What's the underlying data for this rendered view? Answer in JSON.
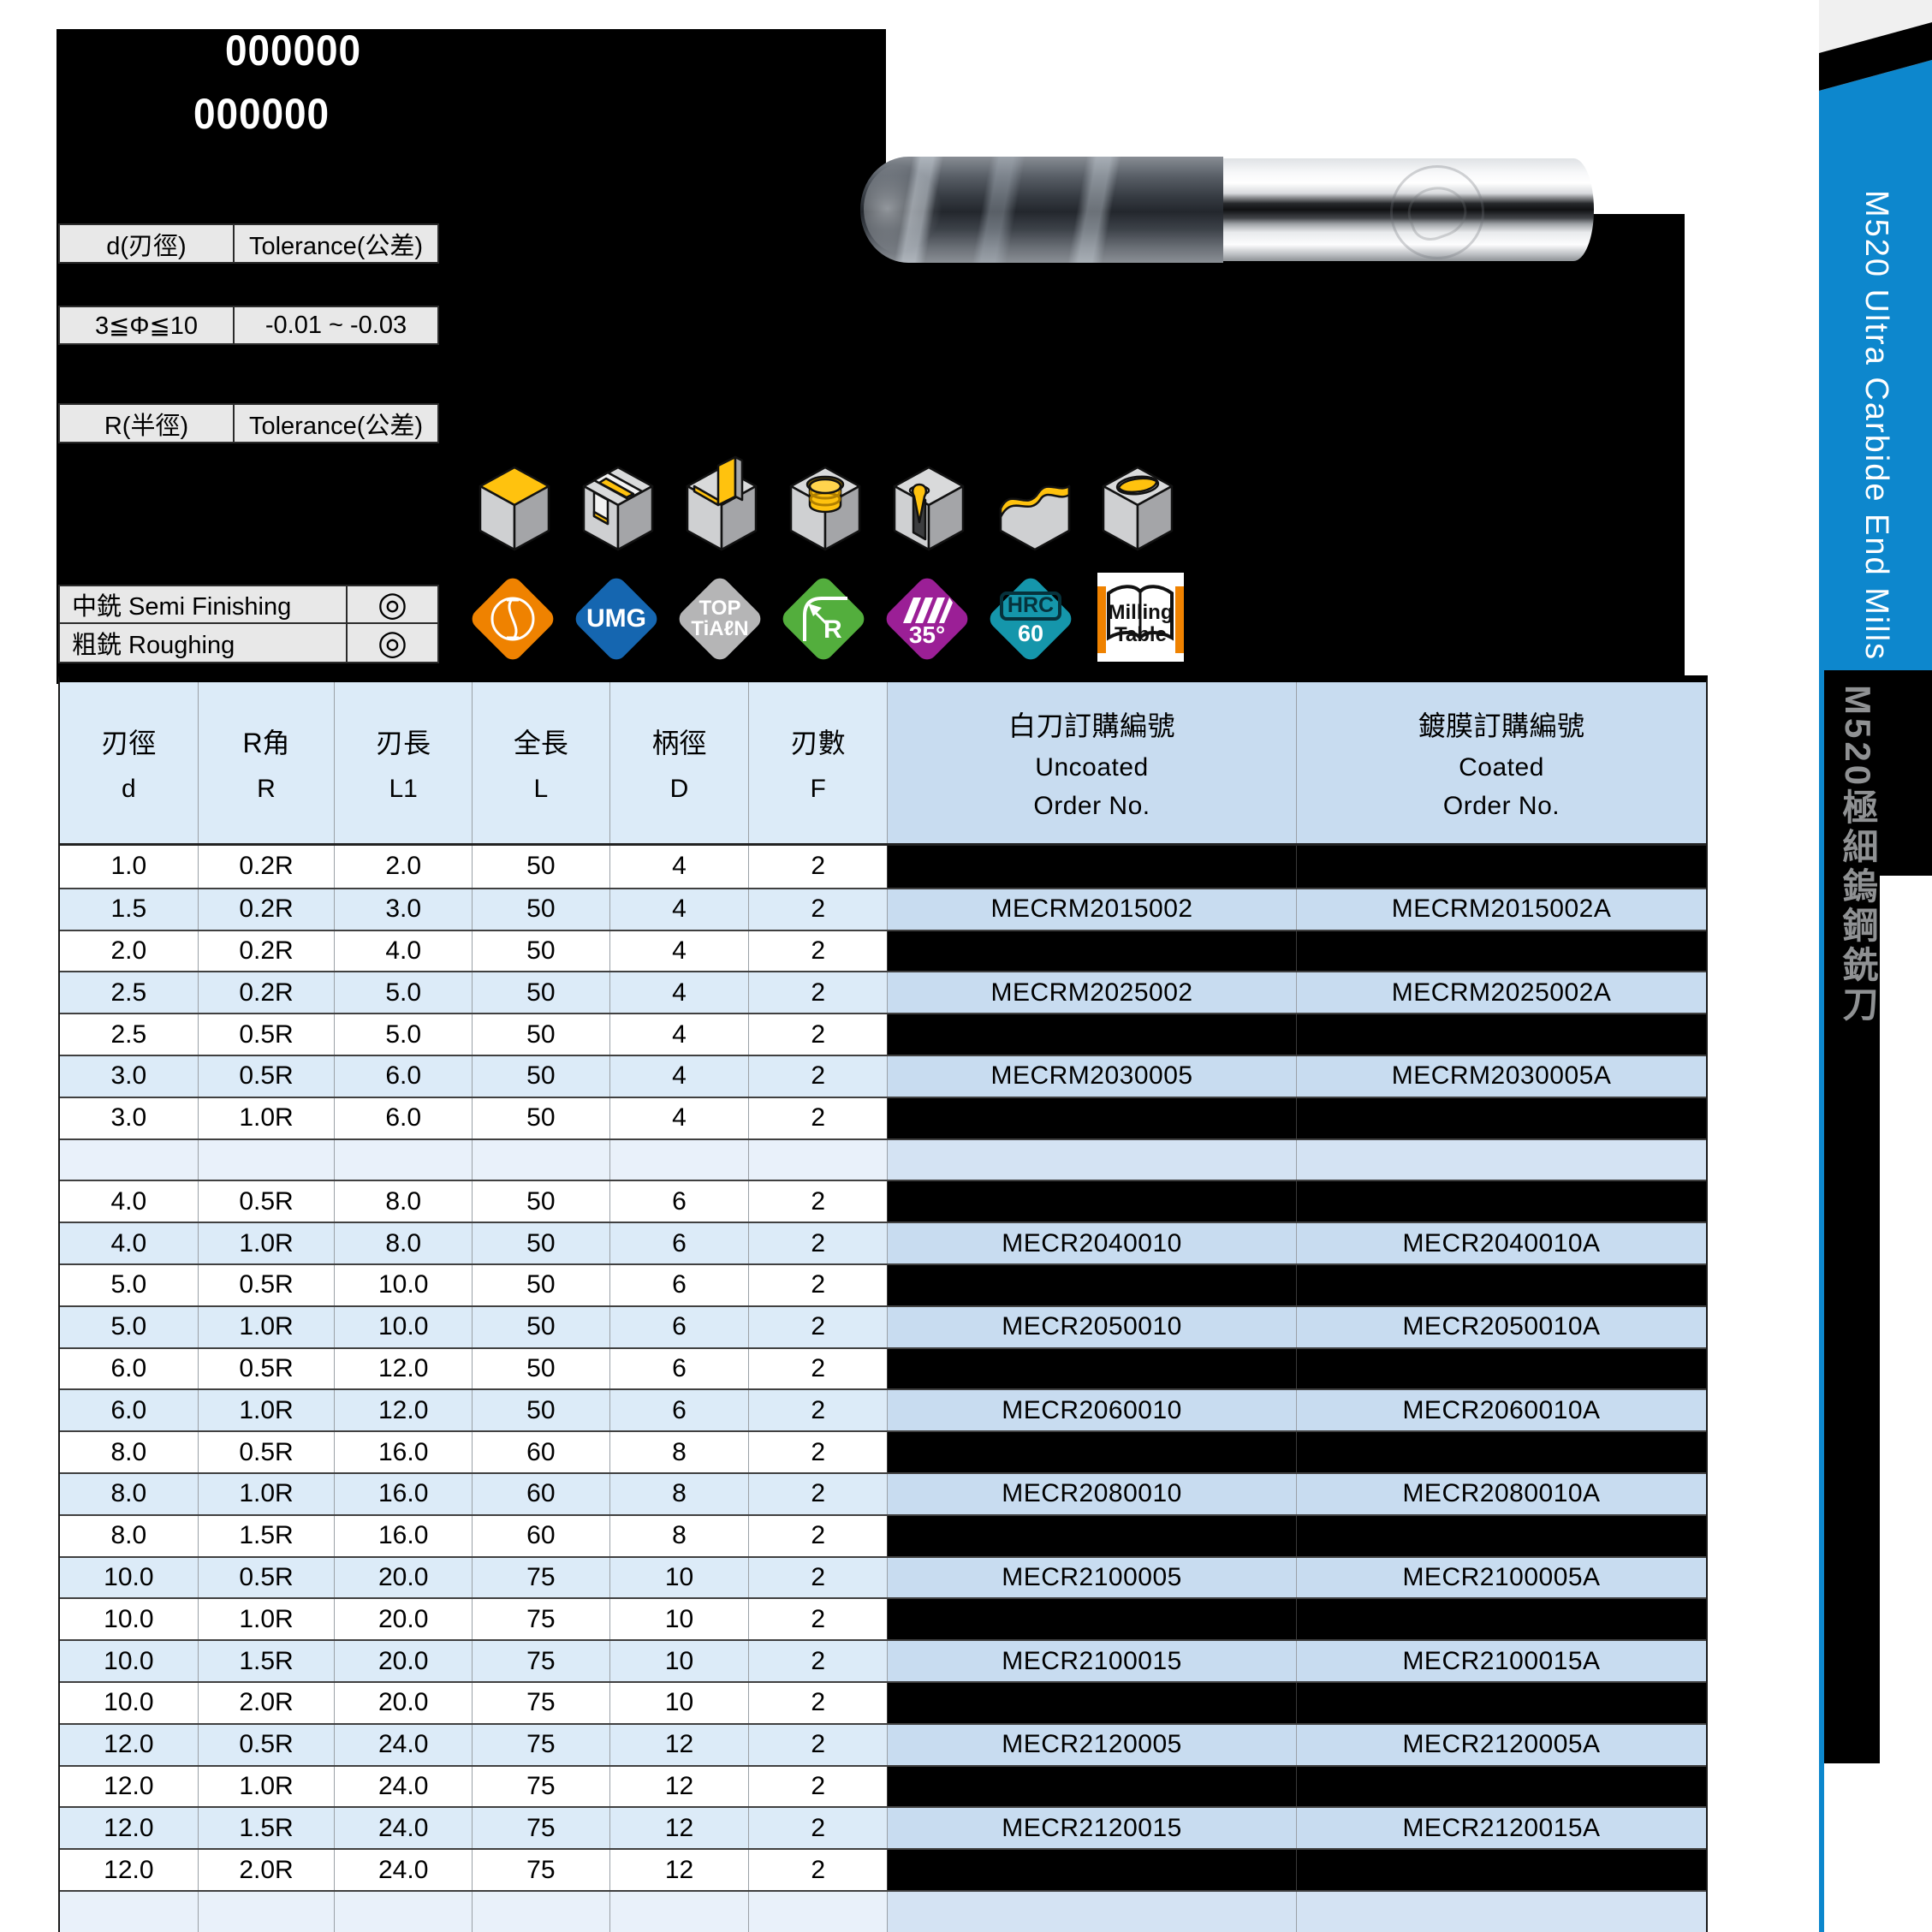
{
  "top_panel": {
    "edp_line1": "000000",
    "edp_line2": "000000",
    "d_table": {
      "header": [
        "d(刃徑)",
        "Tolerance(公差)"
      ],
      "row": [
        "3≦Φ≦10",
        "-0.01 ~ -0.03"
      ]
    },
    "r_table": {
      "header": [
        "R(半徑)",
        "Tolerance(公差)"
      ]
    },
    "app_table": {
      "rows": [
        {
          "label": "中銑 Semi Finishing",
          "rating": "◎"
        },
        {
          "label": "粗銑 Roughing",
          "rating": "◎"
        }
      ]
    }
  },
  "machining_icons": [
    "face-milling",
    "slot-milling",
    "side-milling",
    "helical-milling",
    "drilling",
    "contour-milling",
    "pocket-milling"
  ],
  "badges": [
    {
      "name": "endmill-tip-symbol",
      "color": "#ef8200",
      "line1": "",
      "line2": ""
    },
    {
      "name": "umg-carbide",
      "color": "#1566b0",
      "line1": "UMG",
      "line2": ""
    },
    {
      "name": "top-tialn-coating",
      "color": "#b5b5b6",
      "line1": "TOP",
      "line2": "TiAℓN"
    },
    {
      "name": "corner-radius",
      "color": "#53ae3d",
      "line1": "R",
      "line2": ""
    },
    {
      "name": "helix-angle",
      "color": "#9b1f96",
      "line1": "35°",
      "line2": ""
    },
    {
      "name": "hardness",
      "color": "#1596ab",
      "line1": "HRC",
      "line2": "60"
    },
    {
      "name": "milling-table",
      "color": "#ffffff",
      "line1": "Milling",
      "line2": "Table"
    }
  ],
  "sidebar": {
    "title_en": "M520 Ultra Carbide End Mills",
    "title_zh": "M520極細鎢鋼銑刀",
    "accent_color": "#0d87cd"
  },
  "table": {
    "headers": [
      {
        "zh": "刃徑",
        "latin": "d"
      },
      {
        "zh": "R角",
        "latin": "R"
      },
      {
        "zh": "刃長",
        "latin": "L1"
      },
      {
        "zh": "全長",
        "latin": "L"
      },
      {
        "zh": "柄徑",
        "latin": "D"
      },
      {
        "zh": "刃數",
        "latin": "F"
      }
    ],
    "order_headers": [
      {
        "zh": "白刀訂購編號",
        "en": "Uncoated",
        "no": "Order No."
      },
      {
        "zh": "鍍膜訂購編號",
        "en": "Coated",
        "no": "Order No."
      }
    ],
    "rows": [
      {
        "d": "1.0",
        "r": "0.2R",
        "l1": "2.0",
        "l": "50",
        "dia": "4",
        "f": "2",
        "unc": "",
        "coa": ""
      },
      {
        "d": "1.5",
        "r": "0.2R",
        "l1": "3.0",
        "l": "50",
        "dia": "4",
        "f": "2",
        "unc": "MECRM2015002",
        "coa": "MECRM2015002A"
      },
      {
        "d": "2.0",
        "r": "0.2R",
        "l1": "4.0",
        "l": "50",
        "dia": "4",
        "f": "2",
        "unc": "",
        "coa": ""
      },
      {
        "d": "2.5",
        "r": "0.2R",
        "l1": "5.0",
        "l": "50",
        "dia": "4",
        "f": "2",
        "unc": "MECRM2025002",
        "coa": "MECRM2025002A"
      },
      {
        "d": "2.5",
        "r": "0.5R",
        "l1": "5.0",
        "l": "50",
        "dia": "4",
        "f": "2",
        "unc": "",
        "coa": ""
      },
      {
        "d": "3.0",
        "r": "0.5R",
        "l1": "6.0",
        "l": "50",
        "dia": "4",
        "f": "2",
        "unc": "MECRM2030005",
        "coa": "MECRM2030005A"
      },
      {
        "d": "3.0",
        "r": "1.0R",
        "l1": "6.0",
        "l": "50",
        "dia": "4",
        "f": "2",
        "unc": "",
        "coa": ""
      },
      {
        "separator": true
      },
      {
        "d": "4.0",
        "r": "0.5R",
        "l1": "8.0",
        "l": "50",
        "dia": "6",
        "f": "2",
        "unc": "",
        "coa": ""
      },
      {
        "d": "4.0",
        "r": "1.0R",
        "l1": "8.0",
        "l": "50",
        "dia": "6",
        "f": "2",
        "unc": "MECR2040010",
        "coa": "MECR2040010A"
      },
      {
        "d": "5.0",
        "r": "0.5R",
        "l1": "10.0",
        "l": "50",
        "dia": "6",
        "f": "2",
        "unc": "",
        "coa": ""
      },
      {
        "d": "5.0",
        "r": "1.0R",
        "l1": "10.0",
        "l": "50",
        "dia": "6",
        "f": "2",
        "unc": "MECR2050010",
        "coa": "MECR2050010A"
      },
      {
        "d": "6.0",
        "r": "0.5R",
        "l1": "12.0",
        "l": "50",
        "dia": "6",
        "f": "2",
        "unc": "",
        "coa": ""
      },
      {
        "d": "6.0",
        "r": "1.0R",
        "l1": "12.0",
        "l": "50",
        "dia": "6",
        "f": "2",
        "unc": "MECR2060010",
        "coa": "MECR2060010A"
      },
      {
        "d": "8.0",
        "r": "0.5R",
        "l1": "16.0",
        "l": "60",
        "dia": "8",
        "f": "2",
        "unc": "",
        "coa": ""
      },
      {
        "d": "8.0",
        "r": "1.0R",
        "l1": "16.0",
        "l": "60",
        "dia": "8",
        "f": "2",
        "unc": "MECR2080010",
        "coa": "MECR2080010A"
      },
      {
        "d": "8.0",
        "r": "1.5R",
        "l1": "16.0",
        "l": "60",
        "dia": "8",
        "f": "2",
        "unc": "",
        "coa": ""
      },
      {
        "d": "10.0",
        "r": "0.5R",
        "l1": "20.0",
        "l": "75",
        "dia": "10",
        "f": "2",
        "unc": "MECR2100005",
        "coa": "MECR2100005A"
      },
      {
        "d": "10.0",
        "r": "1.0R",
        "l1": "20.0",
        "l": "75",
        "dia": "10",
        "f": "2",
        "unc": "",
        "coa": ""
      },
      {
        "d": "10.0",
        "r": "1.5R",
        "l1": "20.0",
        "l": "75",
        "dia": "10",
        "f": "2",
        "unc": "MECR2100015",
        "coa": "MECR2100015A"
      },
      {
        "d": "10.0",
        "r": "2.0R",
        "l1": "20.0",
        "l": "75",
        "dia": "10",
        "f": "2",
        "unc": "",
        "coa": ""
      },
      {
        "d": "12.0",
        "r": "0.5R",
        "l1": "24.0",
        "l": "75",
        "dia": "12",
        "f": "2",
        "unc": "MECR2120005",
        "coa": "MECR2120005A"
      },
      {
        "d": "12.0",
        "r": "1.0R",
        "l1": "24.0",
        "l": "75",
        "dia": "12",
        "f": "2",
        "unc": "",
        "coa": ""
      },
      {
        "d": "12.0",
        "r": "1.5R",
        "l1": "24.0",
        "l": "75",
        "dia": "12",
        "f": "2",
        "unc": "MECR2120015",
        "coa": "MECR2120015A"
      },
      {
        "d": "12.0",
        "r": "2.0R",
        "l1": "24.0",
        "l": "75",
        "dia": "12",
        "f": "2",
        "unc": "",
        "coa": ""
      },
      {
        "separator": true,
        "partial": true
      }
    ]
  },
  "colors": {
    "row_blue": "#dcebf8",
    "order_blue": "#c8dcf0",
    "sep_blue": "#e9f1fa",
    "accent_blue": "#0d87cd",
    "machined_yellow": "#ffc20e"
  }
}
